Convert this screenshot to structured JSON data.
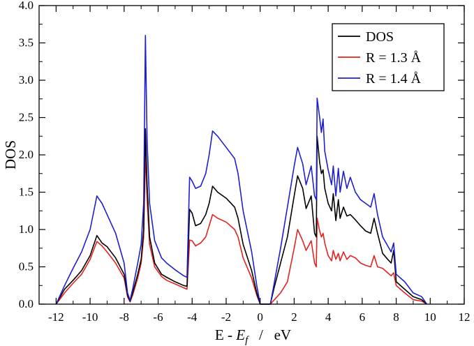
{
  "chart_data": {
    "type": "line",
    "xlabel": {
      "prefix": "E - ",
      "italic": "E",
      "sub": "f",
      "suffix": "   /   eV"
    },
    "ylabel": "DOS",
    "xlim": [
      -13,
      12
    ],
    "ylim": [
      0,
      4.0
    ],
    "x_ticks": [
      -12,
      -10,
      -8,
      -6,
      -4,
      -2,
      0,
      2,
      4,
      6,
      8,
      10,
      12
    ],
    "x_tick_labels": [
      "-12",
      "-10",
      "-8",
      "-6",
      "-4",
      "-2",
      "0",
      "2",
      "4",
      "6",
      "8",
      "10",
      "12"
    ],
    "y_ticks": [
      0,
      0.5,
      1.0,
      1.5,
      2.0,
      2.5,
      3.0,
      3.5,
      4.0
    ],
    "y_tick_labels": [
      "0.0",
      "0.5",
      "1.0",
      "1.5",
      "2.0",
      "2.5",
      "3.0",
      "3.5",
      "4.0"
    ],
    "grid": false,
    "legend_position": "top-right",
    "series": [
      {
        "name": "DOS",
        "color": "#000000",
        "points": [
          [
            -12.0,
            0.0
          ],
          [
            -11.5,
            0.2
          ],
          [
            -11.0,
            0.32
          ],
          [
            -10.5,
            0.45
          ],
          [
            -10.0,
            0.65
          ],
          [
            -9.6,
            0.92
          ],
          [
            -9.3,
            0.82
          ],
          [
            -9.0,
            0.77
          ],
          [
            -8.5,
            0.62
          ],
          [
            -8.0,
            0.4
          ],
          [
            -7.8,
            0.12
          ],
          [
            -7.65,
            0.04
          ],
          [
            -7.5,
            0.15
          ],
          [
            -7.2,
            0.4
          ],
          [
            -7.0,
            0.6
          ],
          [
            -6.85,
            1.0
          ],
          [
            -6.75,
            2.35
          ],
          [
            -6.65,
            1.6
          ],
          [
            -6.5,
            0.9
          ],
          [
            -6.2,
            0.55
          ],
          [
            -5.8,
            0.4
          ],
          [
            -5.5,
            0.36
          ],
          [
            -5.0,
            0.3
          ],
          [
            -4.5,
            0.25
          ],
          [
            -4.3,
            0.24
          ],
          [
            -4.15,
            1.27
          ],
          [
            -4.0,
            1.22
          ],
          [
            -3.8,
            1.05
          ],
          [
            -3.5,
            1.08
          ],
          [
            -3.2,
            1.2
          ],
          [
            -3.0,
            1.35
          ],
          [
            -2.8,
            1.58
          ],
          [
            -2.5,
            1.5
          ],
          [
            -2.0,
            1.42
          ],
          [
            -1.5,
            1.3
          ],
          [
            -1.3,
            1.15
          ],
          [
            -1.0,
            0.8
          ],
          [
            -0.5,
            0.45
          ],
          [
            -0.2,
            0.15
          ],
          [
            0.0,
            0.0
          ],
          [
            0.6,
            0.0
          ],
          [
            0.8,
            0.2
          ],
          [
            1.2,
            0.55
          ],
          [
            1.6,
            0.9
          ],
          [
            2.0,
            1.45
          ],
          [
            2.2,
            1.72
          ],
          [
            2.5,
            1.55
          ],
          [
            2.7,
            1.28
          ],
          [
            3.0,
            1.45
          ],
          [
            3.2,
            0.95
          ],
          [
            3.3,
            0.9
          ],
          [
            3.35,
            2.25
          ],
          [
            3.5,
            1.9
          ],
          [
            3.6,
            1.75
          ],
          [
            3.7,
            1.8
          ],
          [
            3.8,
            1.55
          ],
          [
            4.0,
            1.35
          ],
          [
            4.2,
            1.25
          ],
          [
            4.3,
            1.48
          ],
          [
            4.45,
            1.12
          ],
          [
            4.6,
            1.4
          ],
          [
            4.7,
            1.15
          ],
          [
            4.9,
            1.3
          ],
          [
            5.1,
            1.18
          ],
          [
            5.3,
            1.2
          ],
          [
            5.6,
            1.13
          ],
          [
            5.9,
            1.05
          ],
          [
            6.2,
            0.98
          ],
          [
            6.5,
            0.95
          ],
          [
            6.7,
            1.15
          ],
          [
            6.9,
            0.95
          ],
          [
            7.2,
            0.68
          ],
          [
            7.5,
            0.6
          ],
          [
            7.7,
            0.55
          ],
          [
            7.85,
            0.72
          ],
          [
            8.0,
            0.3
          ],
          [
            8.5,
            0.2
          ],
          [
            9.0,
            0.1
          ],
          [
            9.5,
            0.06
          ],
          [
            9.8,
            0.0
          ]
        ]
      },
      {
        "name": "R = 1.3 Å",
        "color": "#e3231f",
        "points": [
          [
            -12.0,
            0.0
          ],
          [
            -11.5,
            0.15
          ],
          [
            -11.0,
            0.28
          ],
          [
            -10.5,
            0.4
          ],
          [
            -10.0,
            0.6
          ],
          [
            -9.6,
            0.84
          ],
          [
            -9.3,
            0.78
          ],
          [
            -9.0,
            0.7
          ],
          [
            -8.5,
            0.55
          ],
          [
            -8.0,
            0.35
          ],
          [
            -7.8,
            0.1
          ],
          [
            -7.65,
            0.03
          ],
          [
            -7.5,
            0.12
          ],
          [
            -7.2,
            0.35
          ],
          [
            -7.0,
            0.55
          ],
          [
            -6.85,
            0.9
          ],
          [
            -6.75,
            2.05
          ],
          [
            -6.65,
            1.4
          ],
          [
            -6.5,
            0.8
          ],
          [
            -6.2,
            0.5
          ],
          [
            -5.8,
            0.37
          ],
          [
            -5.5,
            0.32
          ],
          [
            -5.0,
            0.27
          ],
          [
            -4.5,
            0.22
          ],
          [
            -4.3,
            0.2
          ],
          [
            -4.15,
            0.86
          ],
          [
            -4.0,
            0.85
          ],
          [
            -3.8,
            0.78
          ],
          [
            -3.5,
            0.82
          ],
          [
            -3.2,
            0.9
          ],
          [
            -3.0,
            1.05
          ],
          [
            -2.8,
            1.2
          ],
          [
            -2.5,
            1.15
          ],
          [
            -2.0,
            1.1
          ],
          [
            -1.5,
            1.0
          ],
          [
            -1.3,
            0.9
          ],
          [
            -1.0,
            0.62
          ],
          [
            -0.5,
            0.35
          ],
          [
            -0.2,
            0.12
          ],
          [
            0.0,
            0.0
          ],
          [
            0.6,
            0.0
          ],
          [
            0.8,
            0.05
          ],
          [
            1.2,
            0.15
          ],
          [
            1.6,
            0.3
          ],
          [
            2.0,
            0.75
          ],
          [
            2.2,
            1.0
          ],
          [
            2.5,
            0.85
          ],
          [
            2.7,
            0.72
          ],
          [
            3.0,
            0.85
          ],
          [
            3.2,
            0.55
          ],
          [
            3.3,
            0.5
          ],
          [
            3.35,
            1.15
          ],
          [
            3.5,
            0.98
          ],
          [
            3.6,
            0.9
          ],
          [
            3.7,
            0.95
          ],
          [
            3.8,
            0.82
          ],
          [
            4.0,
            0.65
          ],
          [
            4.2,
            0.58
          ],
          [
            4.3,
            0.72
          ],
          [
            4.45,
            0.6
          ],
          [
            4.6,
            0.68
          ],
          [
            4.7,
            0.58
          ],
          [
            4.9,
            0.7
          ],
          [
            5.1,
            0.6
          ],
          [
            5.3,
            0.65
          ],
          [
            5.6,
            0.62
          ],
          [
            5.9,
            0.55
          ],
          [
            6.2,
            0.52
          ],
          [
            6.5,
            0.5
          ],
          [
            6.7,
            0.65
          ],
          [
            6.9,
            0.5
          ],
          [
            7.2,
            0.48
          ],
          [
            7.5,
            0.42
          ],
          [
            7.7,
            0.38
          ],
          [
            7.85,
            0.42
          ],
          [
            8.0,
            0.25
          ],
          [
            8.5,
            0.15
          ],
          [
            9.0,
            0.06
          ],
          [
            9.5,
            0.04
          ],
          [
            9.8,
            0.0
          ]
        ]
      },
      {
        "name": "R = 1.4 Å",
        "color": "#1f1fcf",
        "points": [
          [
            -12.0,
            0.0
          ],
          [
            -11.5,
            0.25
          ],
          [
            -11.0,
            0.48
          ],
          [
            -10.5,
            0.7
          ],
          [
            -10.0,
            1.0
          ],
          [
            -9.6,
            1.45
          ],
          [
            -9.3,
            1.35
          ],
          [
            -9.0,
            1.2
          ],
          [
            -8.5,
            0.95
          ],
          [
            -8.0,
            0.55
          ],
          [
            -7.8,
            0.15
          ],
          [
            -7.65,
            0.05
          ],
          [
            -7.5,
            0.2
          ],
          [
            -7.2,
            0.55
          ],
          [
            -7.0,
            0.8
          ],
          [
            -6.85,
            1.35
          ],
          [
            -6.75,
            3.6
          ],
          [
            -6.65,
            2.2
          ],
          [
            -6.5,
            1.35
          ],
          [
            -6.2,
            0.85
          ],
          [
            -5.8,
            0.62
          ],
          [
            -5.5,
            0.55
          ],
          [
            -5.0,
            0.46
          ],
          [
            -4.5,
            0.38
          ],
          [
            -4.3,
            0.36
          ],
          [
            -4.15,
            1.7
          ],
          [
            -4.0,
            1.65
          ],
          [
            -3.8,
            1.55
          ],
          [
            -3.5,
            1.58
          ],
          [
            -3.2,
            1.75
          ],
          [
            -3.0,
            2.0
          ],
          [
            -2.8,
            2.32
          ],
          [
            -2.5,
            2.25
          ],
          [
            -2.0,
            2.1
          ],
          [
            -1.5,
            1.95
          ],
          [
            -1.3,
            1.75
          ],
          [
            -1.0,
            1.25
          ],
          [
            -0.5,
            0.7
          ],
          [
            -0.2,
            0.25
          ],
          [
            0.0,
            0.0
          ],
          [
            0.6,
            0.0
          ],
          [
            0.8,
            0.25
          ],
          [
            1.2,
            0.75
          ],
          [
            1.6,
            1.3
          ],
          [
            2.0,
            1.85
          ],
          [
            2.2,
            2.1
          ],
          [
            2.5,
            1.88
          ],
          [
            2.7,
            1.6
          ],
          [
            3.0,
            1.85
          ],
          [
            3.2,
            1.45
          ],
          [
            3.3,
            1.4
          ],
          [
            3.35,
            2.76
          ],
          [
            3.5,
            2.5
          ],
          [
            3.6,
            2.3
          ],
          [
            3.7,
            2.48
          ],
          [
            3.8,
            2.05
          ],
          [
            4.0,
            1.8
          ],
          [
            4.2,
            1.6
          ],
          [
            4.3,
            1.85
          ],
          [
            4.45,
            1.45
          ],
          [
            4.6,
            1.82
          ],
          [
            4.7,
            1.5
          ],
          [
            4.9,
            1.78
          ],
          [
            5.1,
            1.55
          ],
          [
            5.3,
            1.7
          ],
          [
            5.6,
            1.5
          ],
          [
            5.9,
            1.4
          ],
          [
            6.2,
            1.35
          ],
          [
            6.5,
            1.3
          ],
          [
            6.7,
            1.48
          ],
          [
            6.9,
            1.2
          ],
          [
            7.2,
            0.9
          ],
          [
            7.5,
            0.78
          ],
          [
            7.7,
            0.7
          ],
          [
            7.85,
            0.82
          ],
          [
            8.0,
            0.4
          ],
          [
            8.5,
            0.3
          ],
          [
            9.0,
            0.15
          ],
          [
            9.5,
            0.1
          ],
          [
            9.8,
            0.0
          ]
        ]
      }
    ]
  }
}
